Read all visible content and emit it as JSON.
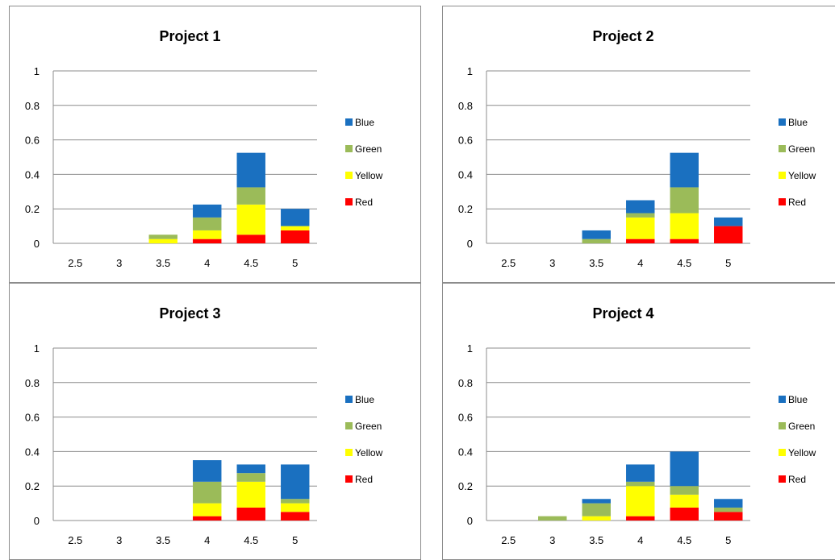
{
  "colors": {
    "Blue": "#1a70c0",
    "Green": "#9bbb59",
    "Yellow": "#ffff00",
    "Red": "#ff0000",
    "axis": "#8c8c8c",
    "grid": "#8c8c8c"
  },
  "legend_order": [
    "Blue",
    "Green",
    "Yellow",
    "Red"
  ],
  "chart_data": [
    {
      "type": "bar",
      "stacked": true,
      "title": "Project 1",
      "categories": [
        "2.5",
        "3",
        "3.5",
        "4",
        "4.5",
        "5"
      ],
      "ylim": [
        0,
        1
      ],
      "yticks": [
        "0",
        "0.2",
        "0.4",
        "0.6",
        "0.8",
        "1"
      ],
      "grid": true,
      "legend": "right",
      "series": [
        {
          "name": "Red",
          "values": [
            0,
            0,
            0,
            0.025,
            0.05,
            0.075
          ]
        },
        {
          "name": "Yellow",
          "values": [
            0,
            0,
            0.025,
            0.05,
            0.175,
            0.025
          ]
        },
        {
          "name": "Green",
          "values": [
            0,
            0,
            0.025,
            0.075,
            0.1,
            0
          ]
        },
        {
          "name": "Blue",
          "values": [
            0,
            0,
            0,
            0.075,
            0.2,
            0.1
          ]
        }
      ]
    },
    {
      "type": "bar",
      "stacked": true,
      "title": "Project 2",
      "categories": [
        "2.5",
        "3",
        "3.5",
        "4",
        "4.5",
        "5"
      ],
      "ylim": [
        0,
        1
      ],
      "yticks": [
        "0",
        "0.2",
        "0.4",
        "0.6",
        "0.8",
        "1"
      ],
      "grid": true,
      "legend": "right",
      "series": [
        {
          "name": "Red",
          "values": [
            0,
            0,
            0,
            0.025,
            0.025,
            0.1
          ]
        },
        {
          "name": "Yellow",
          "values": [
            0,
            0,
            0,
            0.125,
            0.15,
            0
          ]
        },
        {
          "name": "Green",
          "values": [
            0,
            0,
            0.025,
            0.025,
            0.15,
            0
          ]
        },
        {
          "name": "Blue",
          "values": [
            0,
            0,
            0.05,
            0.075,
            0.2,
            0.05
          ]
        }
      ]
    },
    {
      "type": "bar",
      "stacked": true,
      "title": "Project 3",
      "categories": [
        "2.5",
        "3",
        "3.5",
        "4",
        "4.5",
        "5"
      ],
      "ylim": [
        0,
        1
      ],
      "yticks": [
        "0",
        "0.2",
        "0.4",
        "0.6",
        "0.8",
        "1"
      ],
      "grid": true,
      "legend": "right",
      "series": [
        {
          "name": "Red",
          "values": [
            0,
            0,
            0,
            0.025,
            0.075,
            0.05
          ]
        },
        {
          "name": "Yellow",
          "values": [
            0,
            0,
            0,
            0.075,
            0.15,
            0.05
          ]
        },
        {
          "name": "Green",
          "values": [
            0,
            0,
            0,
            0.125,
            0.05,
            0.025
          ]
        },
        {
          "name": "Blue",
          "values": [
            0,
            0,
            0,
            0.125,
            0.05,
            0.2
          ]
        }
      ]
    },
    {
      "type": "bar",
      "stacked": true,
      "title": "Project 4",
      "categories": [
        "2.5",
        "3",
        "3.5",
        "4",
        "4.5",
        "5"
      ],
      "ylim": [
        0,
        1
      ],
      "yticks": [
        "0",
        "0.2",
        "0.4",
        "0.6",
        "0.8",
        "1"
      ],
      "grid": true,
      "legend": "right",
      "series": [
        {
          "name": "Red",
          "values": [
            0,
            0,
            0,
            0.025,
            0.075,
            0.05
          ]
        },
        {
          "name": "Yellow",
          "values": [
            0,
            0,
            0.025,
            0.175,
            0.075,
            0
          ]
        },
        {
          "name": "Green",
          "values": [
            0,
            0.025,
            0.075,
            0.025,
            0.05,
            0.025
          ]
        },
        {
          "name": "Blue",
          "values": [
            0,
            0,
            0.025,
            0.1,
            0.2,
            0.05
          ]
        }
      ]
    }
  ]
}
